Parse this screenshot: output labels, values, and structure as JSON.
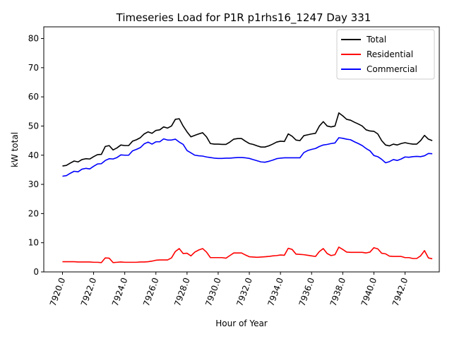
{
  "chart_data": {
    "type": "line",
    "title": "Timeseries Load for P1R p1rhs16_1247  Day 331",
    "xlabel": "Hour of Year",
    "ylabel": "kW total",
    "xlim": [
      7918.8,
      7944.2
    ],
    "ylim": [
      0,
      84
    ],
    "x_ticks": [
      7920,
      7922,
      7924,
      7926,
      7928,
      7930,
      7932,
      7934,
      7936,
      7938,
      7940,
      7942
    ],
    "x_tick_labels": [
      "7920.0",
      "7922.0",
      "7924.0",
      "7926.0",
      "7928.0",
      "7930.0",
      "7932.0",
      "7934.0",
      "7936.0",
      "7938.0",
      "7940.0",
      "7942.0"
    ],
    "y_ticks": [
      0,
      10,
      20,
      30,
      40,
      50,
      60,
      70,
      80
    ],
    "y_tick_labels": [
      "0",
      "10",
      "20",
      "30",
      "40",
      "50",
      "60",
      "70",
      "80"
    ],
    "grid": false,
    "legend_position": "top-right",
    "x": [
      7920.0,
      7920.25,
      7920.5,
      7920.75,
      7921.0,
      7921.25,
      7921.5,
      7921.75,
      7922.0,
      7922.25,
      7922.5,
      7922.75,
      7923.0,
      7923.25,
      7923.5,
      7923.75,
      7924.0,
      7924.25,
      7924.5,
      7924.75,
      7925.0,
      7925.25,
      7925.5,
      7925.75,
      7926.0,
      7926.25,
      7926.5,
      7926.75,
      7927.0,
      7927.25,
      7927.5,
      7927.75,
      7928.0,
      7928.25,
      7928.5,
      7928.75,
      7929.0,
      7929.25,
      7929.5,
      7929.75,
      7930.0,
      7930.25,
      7930.5,
      7930.75,
      7931.0,
      7931.25,
      7931.5,
      7931.75,
      7932.0,
      7932.25,
      7932.5,
      7932.75,
      7933.0,
      7933.25,
      7933.5,
      7933.75,
      7934.0,
      7934.25,
      7934.5,
      7934.75,
      7935.0,
      7935.25,
      7935.5,
      7935.75,
      7936.0,
      7936.25,
      7936.5,
      7936.75,
      7937.0,
      7937.25,
      7937.5,
      7937.75,
      7938.0,
      7938.25,
      7938.5,
      7938.75,
      7939.0,
      7939.25,
      7939.5,
      7939.75,
      7940.0,
      7940.25,
      7940.5,
      7940.75,
      7941.0,
      7941.25,
      7941.5,
      7941.75,
      7942.0,
      7942.25,
      7942.5,
      7942.75,
      7943.0,
      7943.25,
      7943.5,
      7943.75
    ],
    "series": [
      {
        "name": "Total",
        "color": "#000000",
        "values": [
          36.3,
          36.5,
          37.3,
          38.0,
          37.7,
          38.5,
          38.8,
          38.7,
          39.5,
          40.2,
          40.3,
          43.0,
          43.3,
          41.8,
          42.5,
          43.5,
          43.3,
          43.3,
          44.8,
          45.3,
          46.0,
          47.3,
          48.0,
          47.5,
          48.5,
          48.7,
          49.7,
          49.3,
          50.0,
          52.3,
          52.5,
          50.0,
          48.0,
          46.3,
          46.8,
          47.3,
          47.7,
          46.3,
          44.0,
          43.8,
          43.8,
          43.7,
          43.7,
          44.5,
          45.5,
          45.7,
          45.7,
          44.8,
          44.0,
          43.7,
          43.2,
          42.8,
          42.8,
          43.2,
          43.8,
          44.5,
          44.8,
          44.7,
          47.3,
          46.5,
          45.2,
          45.0,
          46.7,
          47.0,
          47.3,
          47.5,
          50.0,
          51.5,
          50.0,
          49.7,
          50.0,
          54.5,
          53.5,
          52.3,
          52.0,
          51.3,
          50.7,
          50.0,
          48.7,
          48.3,
          48.2,
          47.3,
          45.0,
          43.5,
          43.2,
          43.8,
          43.5,
          44.0,
          44.3,
          44.0,
          43.8,
          43.8,
          45.0,
          46.8,
          45.5,
          45.0
        ]
      },
      {
        "name": "Residential",
        "color": "#ff0000",
        "values": [
          3.5,
          3.5,
          3.5,
          3.5,
          3.4,
          3.4,
          3.4,
          3.4,
          3.3,
          3.3,
          3.2,
          4.8,
          4.7,
          3.2,
          3.3,
          3.4,
          3.3,
          3.3,
          3.3,
          3.3,
          3.4,
          3.4,
          3.5,
          3.7,
          4.0,
          4.1,
          4.1,
          4.1,
          4.8,
          7.0,
          8.0,
          6.3,
          6.4,
          5.5,
          6.8,
          7.5,
          8.0,
          6.8,
          4.9,
          4.9,
          4.9,
          4.9,
          4.7,
          5.6,
          6.5,
          6.5,
          6.5,
          5.8,
          5.2,
          5.1,
          5.0,
          5.1,
          5.2,
          5.3,
          5.5,
          5.6,
          5.8,
          5.7,
          8.1,
          7.7,
          6.1,
          6.0,
          5.9,
          5.7,
          5.5,
          5.3,
          7.0,
          8.0,
          6.3,
          5.6,
          5.9,
          8.5,
          7.7,
          6.8,
          6.7,
          6.7,
          6.7,
          6.7,
          6.5,
          6.8,
          8.3,
          7.9,
          6.4,
          6.2,
          5.4,
          5.3,
          5.3,
          5.3,
          4.9,
          4.9,
          4.6,
          4.6,
          5.5,
          7.3,
          4.8,
          4.5
        ]
      },
      {
        "name": "Commercial",
        "color": "#0000ff",
        "values": [
          32.8,
          33.0,
          33.8,
          34.5,
          34.3,
          35.2,
          35.5,
          35.3,
          36.2,
          37.0,
          37.1,
          38.2,
          38.8,
          38.7,
          39.2,
          40.1,
          40.0,
          40.0,
          41.5,
          42.0,
          42.6,
          43.9,
          44.5,
          43.8,
          44.6,
          44.6,
          45.6,
          45.2,
          45.2,
          45.5,
          44.5,
          43.7,
          41.6,
          40.8,
          40.0,
          39.8,
          39.7,
          39.4,
          39.2,
          39.0,
          38.9,
          38.9,
          39.0,
          39.0,
          39.1,
          39.2,
          39.2,
          39.1,
          38.9,
          38.5,
          38.1,
          37.7,
          37.6,
          37.9,
          38.3,
          38.8,
          39.0,
          39.1,
          39.1,
          39.1,
          39.1,
          39.1,
          40.9,
          41.6,
          42.0,
          42.3,
          43.0,
          43.5,
          43.7,
          44.0,
          44.2,
          46.0,
          45.8,
          45.5,
          45.3,
          44.6,
          44.0,
          43.3,
          42.3,
          41.5,
          39.9,
          39.5,
          38.6,
          37.4,
          37.8,
          38.5,
          38.2,
          38.7,
          39.4,
          39.3,
          39.5,
          39.6,
          39.5,
          39.8,
          40.6,
          40.5
        ]
      }
    ]
  }
}
